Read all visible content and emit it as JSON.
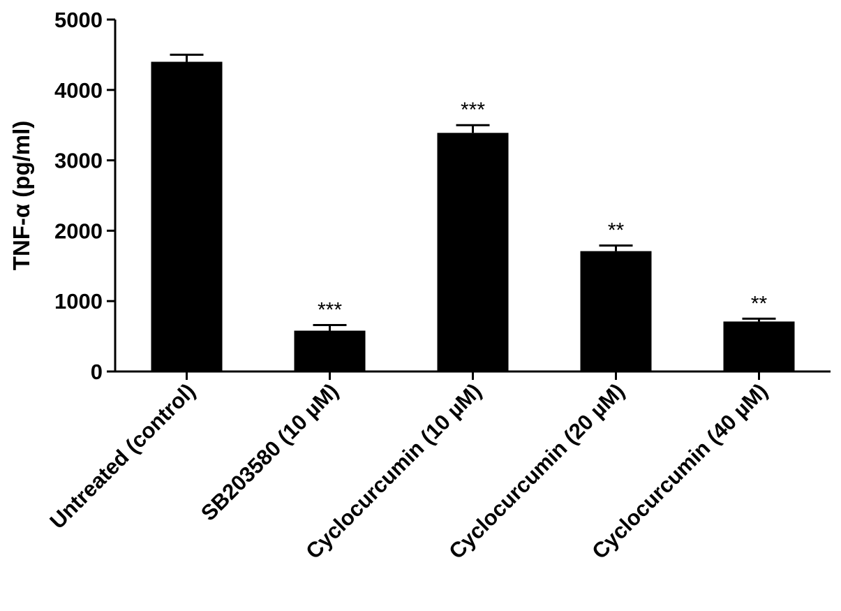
{
  "chart_data": {
    "type": "bar",
    "title": "",
    "xlabel": "",
    "ylabel": "TNF-α (pg/ml)",
    "ylim": [
      0,
      5000
    ],
    "yticks": [
      0,
      1000,
      2000,
      3000,
      4000,
      5000
    ],
    "grid": false,
    "legend": "none",
    "categories": [
      "Untreated (control)",
      "SB203580 (10 µM)",
      "Cyclocurcumin (10 µM)",
      "Cyclocurcumin (20 µM)",
      "Cyclocurcumin (40 µM)"
    ],
    "values": [
      4400,
      580,
      3390,
      1710,
      710
    ],
    "errors": [
      100,
      80,
      110,
      80,
      40
    ],
    "significance": [
      "",
      "***",
      "***",
      "**",
      "**"
    ],
    "bar_color": "#000000"
  }
}
